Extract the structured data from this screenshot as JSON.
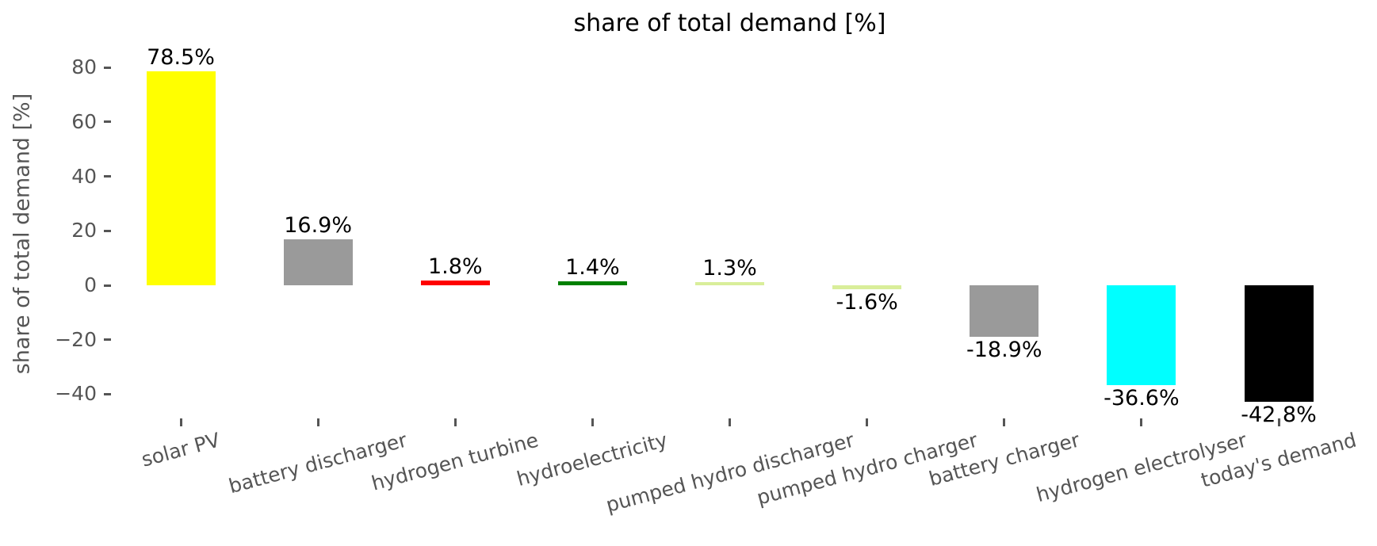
{
  "page": {
    "background": "#ffffff"
  },
  "chart_data": {
    "type": "bar",
    "title": "share of total demand [%]",
    "ylabel": "share of total demand [%]",
    "xlabel": "",
    "categories": [
      "solar PV",
      "battery discharger",
      "hydrogen turbine",
      "hydroelectricity",
      "pumped hydro discharger",
      "pumped hydro charger",
      "battery charger",
      "hydrogen electrolyser",
      "today's demand"
    ],
    "values": [
      78.5,
      16.9,
      1.8,
      1.4,
      1.3,
      -1.6,
      -18.9,
      -36.6,
      -42.8
    ],
    "bar_labels": [
      "78.5%",
      "16.9%",
      "1.8%",
      "1.4%",
      "1.3%",
      "-1.6%",
      "-18.9%",
      "-36.6%",
      "-42.8%"
    ],
    "bar_colors": [
      "#ffff00",
      "#9a9a9a",
      "#ff0000",
      "#008000",
      "#d9ee9a",
      "#d9ee9a",
      "#9a9a9a",
      "#00ffff",
      "#000000"
    ],
    "ytick_values": [
      80,
      60,
      40,
      20,
      0,
      -20,
      -40
    ],
    "ytick_labels": [
      "80",
      "60",
      "40",
      "20",
      "0",
      "−20",
      "−40"
    ],
    "ylim": [
      -48.9,
      84.6
    ],
    "grid": false,
    "legend_position": "none",
    "xtick_rotation_deg": 15,
    "axis_text_color": "#555555",
    "value_label_color": "#000000"
  }
}
